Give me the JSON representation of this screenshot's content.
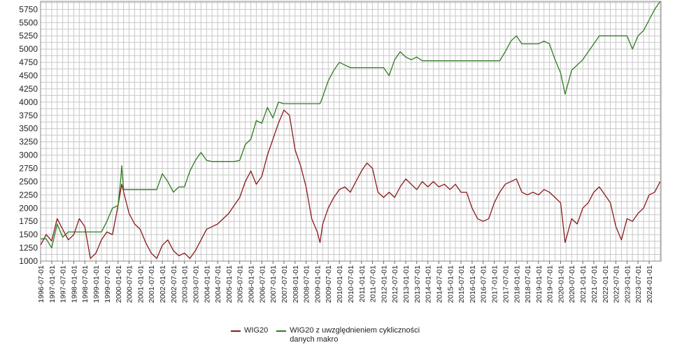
{
  "chart_data": {
    "type": "line",
    "title": "",
    "xlabel": "",
    "ylabel": "",
    "ylim": [
      1000,
      5900
    ],
    "yticks": [
      1000,
      1250,
      1500,
      1750,
      2000,
      2250,
      2500,
      2750,
      3000,
      3250,
      3500,
      3750,
      4000,
      4250,
      4500,
      4750,
      5000,
      5250,
      5500,
      5750
    ],
    "xtick_labels": [
      "1996-07-01",
      "1997-01-01",
      "1997-07-01",
      "1998-01-01",
      "1998-07-01",
      "1999-01-01",
      "1999-07-01",
      "2000-01-01",
      "2000-07-01",
      "2001-01-01",
      "2001-07-01",
      "2002-01-01",
      "2002-07-01",
      "2003-01-01",
      "2003-07-01",
      "2004-01-01",
      "2004-07-01",
      "2005-01-01",
      "2005-07-01",
      "2006-01-01",
      "2006-07-01",
      "2007-01-01",
      "2007-07-01",
      "2008-01-01",
      "2008-07-01",
      "2009-01-01",
      "2009-07-01",
      "2010-01-01",
      "2010-07-01",
      "2011-01-01",
      "2011-07-01",
      "2012-01-01",
      "2012-07-01",
      "2013-01-01",
      "2013-07-01",
      "2014-01-01",
      "2014-07-01",
      "2015-01-01",
      "2015-07-01",
      "2016-01-01",
      "2016-07-01",
      "2017-01-01",
      "2017-07-01",
      "2018-01-01",
      "2018-07-01",
      "2019-01-01",
      "2019-07-01",
      "2020-01-01",
      "2020-07-01",
      "2021-01-01",
      "2021-07-01",
      "2022-01-01",
      "2022-07-01",
      "2023-01-01",
      "2023-07-01",
      "2024-01-01"
    ],
    "grid": true,
    "legend_position": "bottom",
    "series": [
      {
        "name": "WIG20",
        "color": "#8b1a1a",
        "x": [
          "1996-07-01",
          "1996-10-01",
          "1997-01-01",
          "1997-04-01",
          "1997-07-01",
          "1997-10-01",
          "1998-01-01",
          "1998-04-01",
          "1998-07-01",
          "1998-10-01",
          "1999-01-01",
          "1999-04-01",
          "1999-07-01",
          "1999-10-01",
          "2000-01-01",
          "2000-03-01",
          "2000-07-01",
          "2000-10-01",
          "2001-01-01",
          "2001-04-01",
          "2001-07-01",
          "2001-10-01",
          "2002-01-01",
          "2002-04-01",
          "2002-07-01",
          "2002-10-01",
          "2003-01-01",
          "2003-04-01",
          "2003-07-01",
          "2003-10-01",
          "2004-01-01",
          "2004-04-01",
          "2004-07-01",
          "2004-10-01",
          "2005-01-01",
          "2005-04-01",
          "2005-07-01",
          "2005-10-01",
          "2006-01-01",
          "2006-04-01",
          "2006-07-01",
          "2006-10-01",
          "2007-01-01",
          "2007-04-01",
          "2007-07-01",
          "2007-10-01",
          "2008-01-01",
          "2008-04-01",
          "2008-07-01",
          "2008-10-01",
          "2009-01-01",
          "2009-02-15",
          "2009-04-01",
          "2009-07-01",
          "2009-10-01",
          "2010-01-01",
          "2010-04-01",
          "2010-07-01",
          "2010-10-01",
          "2011-01-01",
          "2011-04-01",
          "2011-07-01",
          "2011-10-01",
          "2012-01-01",
          "2012-04-01",
          "2012-07-01",
          "2012-10-01",
          "2013-01-01",
          "2013-04-01",
          "2013-07-01",
          "2013-10-01",
          "2014-01-01",
          "2014-04-01",
          "2014-07-01",
          "2014-10-01",
          "2015-01-01",
          "2015-04-01",
          "2015-07-01",
          "2015-10-01",
          "2016-01-01",
          "2016-04-01",
          "2016-07-01",
          "2016-10-01",
          "2017-01-01",
          "2017-04-01",
          "2017-07-01",
          "2017-10-01",
          "2018-01-01",
          "2018-04-01",
          "2018-07-01",
          "2018-10-01",
          "2019-01-01",
          "2019-04-01",
          "2019-07-01",
          "2019-10-01",
          "2020-01-01",
          "2020-03-15",
          "2020-07-01",
          "2020-10-01",
          "2021-01-01",
          "2021-04-01",
          "2021-07-01",
          "2021-10-01",
          "2022-01-01",
          "2022-04-01",
          "2022-07-01",
          "2022-10-01",
          "2023-01-01",
          "2023-04-01",
          "2023-07-01",
          "2023-10-01",
          "2024-01-01",
          "2024-04-01",
          "2024-07-01"
        ],
        "values": [
          1300,
          1500,
          1380,
          1800,
          1600,
          1400,
          1500,
          1800,
          1650,
          1050,
          1150,
          1400,
          1550,
          1500,
          2050,
          2450,
          1900,
          1700,
          1600,
          1350,
          1150,
          1050,
          1300,
          1400,
          1200,
          1100,
          1150,
          1050,
          1200,
          1400,
          1600,
          1650,
          1700,
          1800,
          1900,
          2050,
          2200,
          2500,
          2700,
          2450,
          2600,
          3000,
          3300,
          3600,
          3850,
          3750,
          3100,
          2800,
          2400,
          1800,
          1550,
          1350,
          1700,
          2000,
          2200,
          2350,
          2400,
          2300,
          2500,
          2700,
          2850,
          2750,
          2300,
          2200,
          2300,
          2200,
          2400,
          2550,
          2450,
          2350,
          2500,
          2400,
          2500,
          2400,
          2450,
          2350,
          2450,
          2300,
          2300,
          2000,
          1800,
          1750,
          1800,
          2100,
          2300,
          2450,
          2500,
          2550,
          2300,
          2250,
          2300,
          2250,
          2350,
          2300,
          2200,
          2100,
          1350,
          1800,
          1700,
          2000,
          2100,
          2300,
          2400,
          2250,
          2100,
          1650,
          1400,
          1800,
          1750,
          1900,
          2000,
          2250,
          2300,
          2500
        ]
      },
      {
        "name": "WIG20 z uwzględnieniem cykliczności danych makro",
        "color": "#2e7d1f",
        "x": [
          "1996-07-01",
          "1996-10-01",
          "1997-01-01",
          "1997-04-01",
          "1997-07-01",
          "1997-10-01",
          "1998-01-01",
          "1998-04-01",
          "1998-07-01",
          "1998-10-01",
          "1999-01-01",
          "1999-04-01",
          "1999-07-01",
          "1999-10-01",
          "2000-01-01",
          "2000-02-15",
          "2000-03-01",
          "2000-04-01",
          "2000-07-01",
          "2000-10-01",
          "2001-01-01",
          "2001-04-01",
          "2001-07-01",
          "2001-10-01",
          "2002-01-01",
          "2002-04-01",
          "2002-07-01",
          "2002-10-01",
          "2003-01-01",
          "2003-04-01",
          "2003-07-01",
          "2003-10-01",
          "2004-01-01",
          "2004-04-01",
          "2004-07-01",
          "2004-10-01",
          "2005-01-01",
          "2005-04-01",
          "2005-07-01",
          "2005-10-01",
          "2006-01-01",
          "2006-04-01",
          "2006-07-01",
          "2006-10-01",
          "2007-01-01",
          "2007-04-01",
          "2007-07-01",
          "2007-10-01",
          "2008-01-01",
          "2008-07-01",
          "2009-01-01",
          "2009-02-15",
          "2009-04-01",
          "2009-07-01",
          "2009-10-01",
          "2010-01-01",
          "2010-04-01",
          "2010-07-01",
          "2010-10-01",
          "2011-01-01",
          "2011-07-01",
          "2012-01-01",
          "2012-04-01",
          "2012-07-01",
          "2012-10-01",
          "2013-01-01",
          "2013-04-01",
          "2013-07-01",
          "2013-10-01",
          "2014-01-01",
          "2014-04-01",
          "2014-07-01",
          "2015-01-01",
          "2015-07-01",
          "2016-01-01",
          "2016-07-01",
          "2017-01-01",
          "2017-04-01",
          "2017-07-01",
          "2017-10-01",
          "2018-01-01",
          "2018-04-01",
          "2018-07-01",
          "2018-10-01",
          "2019-01-01",
          "2019-04-01",
          "2019-07-01",
          "2019-10-01",
          "2020-01-01",
          "2020-03-15",
          "2020-07-01",
          "2020-10-01",
          "2021-01-01",
          "2021-04-01",
          "2021-07-01",
          "2021-10-01",
          "2022-01-01",
          "2022-07-01",
          "2023-01-01",
          "2023-04-01",
          "2023-07-01",
          "2023-10-01",
          "2024-01-01",
          "2024-04-01",
          "2024-07-01"
        ],
        "values": [
          1420,
          1420,
          1250,
          1700,
          1450,
          1550,
          1550,
          1550,
          1550,
          1550,
          1550,
          1550,
          1750,
          2000,
          2050,
          2550,
          2800,
          2350,
          2350,
          2350,
          2350,
          2350,
          2350,
          2350,
          2650,
          2500,
          2300,
          2400,
          2400,
          2700,
          2900,
          3050,
          2900,
          2880,
          2880,
          2880,
          2880,
          2880,
          2900,
          3200,
          3300,
          3650,
          3600,
          3900,
          3700,
          4000,
          3970,
          3970,
          3970,
          3970,
          3970,
          3970,
          4100,
          4400,
          4600,
          4750,
          4700,
          4650,
          4650,
          4650,
          4650,
          4650,
          4500,
          4800,
          4950,
          4850,
          4800,
          4850,
          4780,
          4780,
          4780,
          4780,
          4780,
          4780,
          4780,
          4780,
          4780,
          4780,
          4950,
          5150,
          5250,
          5100,
          5100,
          5100,
          5100,
          5150,
          5100,
          4800,
          4550,
          4150,
          4600,
          4700,
          4800,
          4950,
          5100,
          5250,
          5250,
          5250,
          5250,
          5000,
          5250,
          5350,
          5550,
          5750,
          5900
        ]
      }
    ]
  }
}
